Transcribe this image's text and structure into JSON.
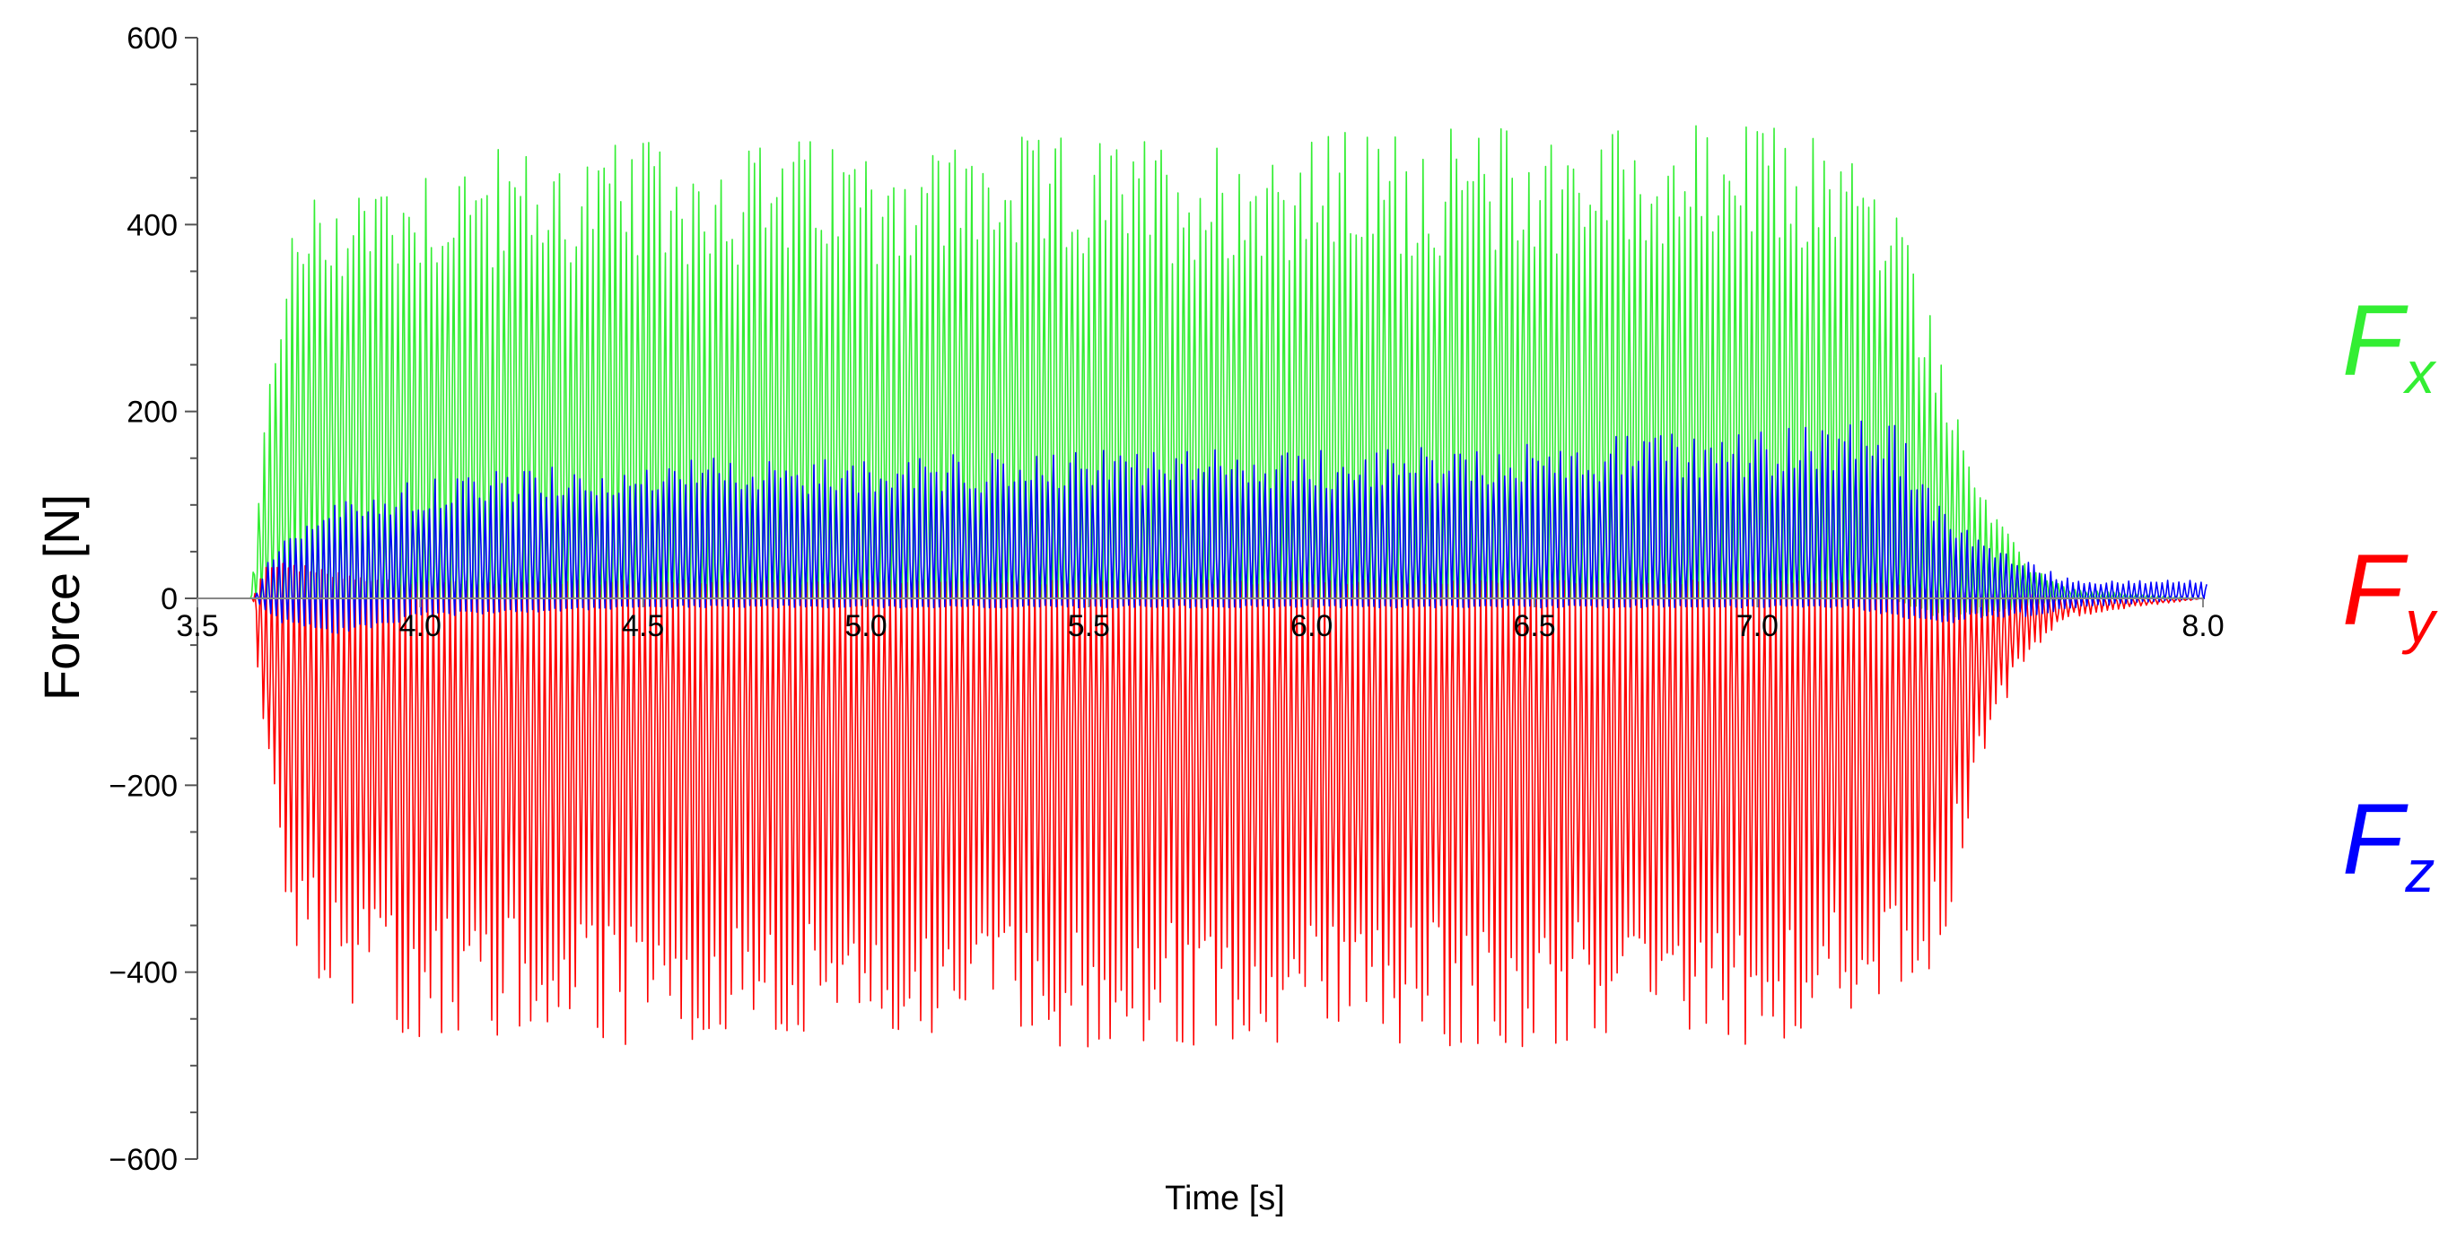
{
  "chart_data": {
    "type": "line",
    "title": "",
    "xlabel": "Time [s]",
    "ylabel": "Force [N]",
    "xlim": [
      3.5,
      8.0
    ],
    "ylim": [
      -600,
      600
    ],
    "x_ticks": [
      "3.5",
      "4.0",
      "4.5",
      "5.0",
      "5.5",
      "6.0",
      "6.5",
      "7.0",
      "8.0"
    ],
    "y_ticks": [
      "600",
      "400",
      "200",
      "0",
      "−200",
      "−400",
      "−600"
    ],
    "grid": false,
    "legend_position": "right",
    "series": [
      {
        "name": "F",
        "subscript": "x",
        "color": "#33ee33",
        "envelope_t": [
          3.5,
          3.62,
          3.65,
          3.7,
          3.8,
          3.9,
          4.0,
          4.5,
          5.0,
          5.5,
          6.0,
          6.5,
          7.0,
          7.2,
          7.3,
          7.4,
          7.5,
          7.6,
          7.7,
          8.0
        ],
        "envelope_max": [
          0,
          0,
          200,
          400,
          460,
          470,
          480,
          490,
          495,
          495,
          500,
          510,
          510,
          500,
          440,
          300,
          120,
          40,
          10,
          0
        ],
        "envelope_min": [
          0,
          0,
          0,
          0,
          0,
          0,
          0,
          0,
          0,
          0,
          0,
          0,
          0,
          0,
          0,
          -20,
          -20,
          -10,
          0,
          0
        ]
      },
      {
        "name": "F",
        "subscript": "y",
        "color": "#ff0000",
        "envelope_t": [
          3.5,
          3.62,
          3.65,
          3.7,
          3.8,
          3.9,
          4.0,
          4.5,
          5.0,
          5.5,
          6.0,
          6.5,
          7.0,
          7.2,
          7.3,
          7.4,
          7.5,
          7.6,
          7.7,
          8.0
        ],
        "envelope_max": [
          0,
          0,
          40,
          40,
          30,
          20,
          20,
          20,
          20,
          20,
          20,
          20,
          20,
          20,
          20,
          10,
          5,
          5,
          0,
          0
        ],
        "envelope_min": [
          0,
          0,
          -200,
          -380,
          -440,
          -460,
          -470,
          -480,
          -480,
          -480,
          -480,
          -480,
          -480,
          -460,
          -450,
          -400,
          -180,
          -60,
          -20,
          0
        ]
      },
      {
        "name": "F",
        "subscript": "z",
        "color": "#0000ff",
        "envelope_t": [
          3.5,
          3.62,
          3.65,
          3.7,
          3.8,
          3.9,
          4.0,
          4.5,
          5.0,
          5.5,
          6.0,
          6.5,
          7.0,
          7.2,
          7.3,
          7.4,
          7.5,
          7.6,
          7.7,
          8.0
        ],
        "envelope_max": [
          0,
          0,
          40,
          70,
          100,
          120,
          130,
          150,
          150,
          160,
          160,
          170,
          180,
          190,
          190,
          100,
          60,
          40,
          20,
          20
        ],
        "envelope_min": [
          0,
          0,
          -20,
          -30,
          -40,
          -30,
          -20,
          -10,
          -10,
          -10,
          -10,
          -10,
          -10,
          -10,
          -20,
          -30,
          -20,
          -20,
          -10,
          0
        ]
      }
    ]
  }
}
